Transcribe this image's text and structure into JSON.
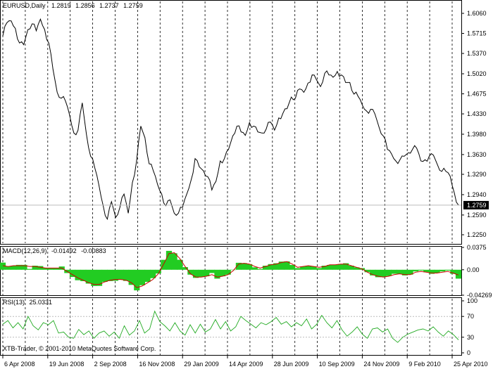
{
  "main": {
    "symbol": "EURUSD,Daily",
    "ohlc": [
      "1.2819",
      "1.2856",
      "1.2737",
      "1.2759"
    ],
    "current_price": "1.2759",
    "y_ticks": [
      "1.6060",
      "1.5715",
      "1.5370",
      "1.5020",
      "1.4675",
      "1.4330",
      "1.3980",
      "1.3630",
      "1.3290",
      "1.2940",
      "1.2590",
      "1.2250"
    ]
  },
  "macd": {
    "title": "MACD(12,26,9)",
    "values": [
      "-0.01492",
      "-0.00883"
    ],
    "y_ticks": [
      "0.0375",
      "0.00",
      "-0.04269"
    ]
  },
  "rsi": {
    "title": "RSI(13)",
    "value": "25.0331",
    "y_ticks": [
      "100",
      "70",
      "30",
      "0"
    ]
  },
  "watermark": "XTB-Trader, © 2001-2010 MetaQuotes Software Corp.",
  "x_ticks": [
    "6 Apr 2008",
    "19 Jun 2008",
    "2 Sep 2008",
    "16 Nov 2008",
    "29 Jan 2009",
    "14 Apr 2009",
    "28 Jun 2009",
    "10 Sep 2009",
    "24 Nov 2009",
    "9 Feb 2010",
    "25 Apr 2010"
  ],
  "colors": {
    "price": "#000000",
    "macd_hist": "#22cc22",
    "macd_signal": "#cc0000",
    "rsi_line": "#22aa22",
    "grid": "#000000",
    "current_box": "#000000"
  },
  "chart_data": [
    {
      "type": "line",
      "title": "EURUSD,Daily",
      "xlabel": "",
      "ylabel": "",
      "ylim": [
        1.225,
        1.606
      ],
      "grid": true,
      "series": [
        {
          "name": "EURUSD",
          "values": [
            1.567,
            1.59,
            1.593,
            1.58,
            1.555,
            1.552,
            1.578,
            1.588,
            1.576,
            1.596,
            1.578,
            1.555,
            1.51,
            1.47,
            1.46,
            1.455,
            1.43,
            1.4,
            1.405,
            1.452,
            1.398,
            1.36,
            1.34,
            1.31,
            1.275,
            1.252,
            1.282,
            1.255,
            1.272,
            1.295,
            1.262,
            1.315,
            1.352,
            1.412,
            1.392,
            1.347,
            1.335,
            1.312,
            1.295,
            1.275,
            1.285,
            1.262,
            1.262,
            1.272,
            1.295,
            1.318,
            1.356,
            1.342,
            1.335,
            1.325,
            1.302,
            1.317,
            1.352,
            1.356,
            1.372,
            1.395,
            1.412,
            1.402,
            1.396,
            1.418,
            1.412,
            1.402,
            1.4,
            1.407,
            1.419,
            1.405,
            1.426,
            1.434,
            1.442,
            1.462,
            1.46,
            1.476,
            1.47,
            1.486,
            1.5,
            1.492,
            1.48,
            1.503,
            1.5,
            1.496,
            1.506,
            1.5,
            1.487,
            1.487,
            1.467,
            1.463,
            1.448,
            1.438,
            1.441,
            1.433,
            1.41,
            1.395,
            1.372,
            1.364,
            1.352,
            1.354,
            1.36,
            1.366,
            1.372,
            1.374,
            1.352,
            1.354,
            1.36,
            1.362,
            1.345,
            1.334,
            1.334,
            1.326,
            1.297,
            1.276
          ]
        }
      ]
    },
    {
      "type": "bar",
      "title": "MACD(12,26,9)",
      "ylim": [
        -0.04269,
        0.0375
      ],
      "series": [
        {
          "name": "MACD",
          "values": [
            0.012,
            0.0055,
            0.0068,
            0.0082,
            0.0082,
            0.0014,
            0.0068,
            0.0062,
            0.0028,
            0.0028,
            0.0028,
            0.0055,
            -0.0055,
            -0.0121,
            -0.0176,
            -0.0191,
            -0.0232,
            -0.0272,
            -0.0271,
            -0.0204,
            -0.019,
            -0.0185,
            -0.0168,
            -0.0187,
            -0.0254,
            -0.0346,
            -0.0259,
            -0.0204,
            -0.0141,
            -0.0063,
            0.0167,
            0.0317,
            0.0277,
            0.0168,
            0.0044,
            -0.0082,
            -0.0136,
            -0.0122,
            -0.0109,
            -0.0055,
            -0.0149,
            -0.0109,
            -0.0082,
            0.0001,
            0.0117,
            0.0112,
            0.0095,
            0.0041,
            0.0014,
            0.0068,
            0.0095,
            0.0109,
            0.0137,
            0.0141,
            0.0081,
            0.0028,
            0.0055,
            0.0068,
            0.0055,
            0.0028,
            0.0068,
            0.0081,
            0.0084,
            0.0095,
            0.0109,
            0.0068,
            0.0041,
            0.0028,
            -0.0041,
            -0.0095,
            -0.0125,
            -0.0122,
            -0.0105,
            -0.0068,
            -0.0068,
            -0.0095,
            -0.0082,
            -0.0028,
            -0.0014,
            -0.0041,
            -0.0068,
            -0.0055,
            -0.0028,
            -0.0014,
            -0.0069,
            -0.0149
          ]
        },
        {
          "name": "Signal",
          "values": [
            0.0068,
            0.0055,
            0.0068,
            0.0068,
            0.0068,
            0.0055,
            0.0055,
            0.0041,
            0.0028,
            0.0028,
            0.0028,
            0.0028,
            -0.0028,
            -0.0082,
            -0.0136,
            -0.0176,
            -0.0218,
            -0.0245,
            -0.0245,
            -0.0204,
            -0.0176,
            -0.0163,
            -0.0163,
            -0.0176,
            -0.0218,
            -0.03,
            -0.0272,
            -0.0218,
            -0.0163,
            -0.0068,
            0.0095,
            0.0272,
            0.0286,
            0.019,
            0.0055,
            -0.0068,
            -0.0123,
            -0.0123,
            -0.0109,
            -0.0082,
            -0.0123,
            -0.0109,
            -0.0082,
            -0.0014,
            0.0095,
            0.0109,
            0.0095,
            0.0055,
            0.0028,
            0.0055,
            0.0082,
            0.0095,
            0.0123,
            0.0136,
            0.0095,
            0.0041,
            0.0055,
            0.0068,
            0.0055,
            0.0041,
            0.0055,
            0.0082,
            0.0082,
            0.0095,
            0.0095,
            0.0068,
            0.0041,
            0.0014,
            -0.0041,
            -0.0082,
            -0.0109,
            -0.0123,
            -0.0109,
            -0.0082,
            -0.0068,
            -0.0082,
            -0.0082,
            -0.0041,
            -0.0028,
            -0.0041,
            -0.0055,
            -0.0055,
            -0.0041,
            -0.0028,
            -0.0055,
            -0.0088
          ]
        }
      ]
    },
    {
      "type": "line",
      "title": "RSI(13)",
      "ylim": [
        0,
        100
      ],
      "series": [
        {
          "name": "RSI",
          "values": [
            55,
            62,
            48,
            58,
            46,
            70,
            52,
            44,
            58,
            54,
            62,
            38,
            40,
            30,
            28,
            45,
            35,
            42,
            28,
            38,
            42,
            32,
            40,
            28,
            52,
            34,
            42,
            62,
            38,
            46,
            80,
            60,
            52,
            42,
            58,
            42,
            34,
            54,
            38,
            55,
            40,
            46,
            64,
            46,
            60,
            42,
            50,
            70,
            62,
            55,
            48,
            58,
            54,
            60,
            68,
            55,
            60,
            50,
            58,
            52,
            65,
            46,
            55,
            72,
            58,
            48,
            62,
            44,
            32,
            40,
            50,
            36,
            28,
            46,
            48,
            40,
            46,
            28,
            20,
            30,
            36,
            40,
            44,
            46,
            42,
            50,
            40,
            32,
            42,
            35,
            25
          ]
        }
      ]
    }
  ]
}
